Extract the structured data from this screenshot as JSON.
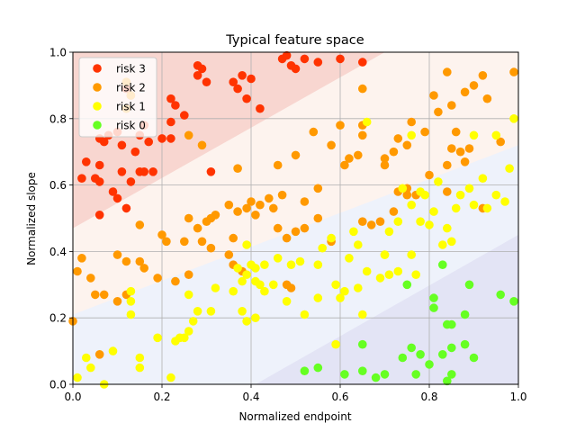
{
  "chart_data": {
    "type": "scatter",
    "title": "Typical feature space",
    "xlabel": "Normalized endpoint",
    "ylabel": "Normalized slope",
    "xlim": [
      0,
      1
    ],
    "ylim": [
      0,
      1
    ],
    "xticks": [
      "0.0",
      "0.2",
      "0.4",
      "0.6",
      "0.8",
      "1.0"
    ],
    "yticks": [
      "0.0",
      "0.2",
      "0.4",
      "0.6",
      "0.8",
      "1.0"
    ],
    "grid": true,
    "legend_position": "top-left",
    "background_regions": [
      {
        "name": "risk 3",
        "color": "#f8d6d0",
        "lower_boundary": [
          [
            0,
            0.47
          ],
          [
            0.7,
            1.0
          ]
        ]
      },
      {
        "name": "risk 2",
        "color": "#fdf3ee",
        "lower_boundary": [
          [
            0,
            0.21
          ],
          [
            1.0,
            0.72
          ]
        ]
      },
      {
        "name": "risk 1",
        "color": "#eef2fb",
        "lower_boundary": [
          [
            0.41,
            0.0
          ],
          [
            1.0,
            0.45
          ]
        ]
      },
      {
        "name": "risk 0",
        "color": "#e3e4f5",
        "lower_boundary": []
      }
    ],
    "series": [
      {
        "name": "risk 3",
        "color": "#ff3300",
        "points": [
          [
            0.28,
            0.96
          ],
          [
            0.29,
            0.95
          ],
          [
            0.3,
            0.91
          ],
          [
            0.28,
            0.93
          ],
          [
            0.36,
            0.91
          ],
          [
            0.37,
            0.89
          ],
          [
            0.38,
            0.93
          ],
          [
            0.39,
            0.86
          ],
          [
            0.4,
            0.92
          ],
          [
            0.42,
            0.83
          ],
          [
            0.47,
            0.98
          ],
          [
            0.48,
            0.99
          ],
          [
            0.49,
            0.96
          ],
          [
            0.5,
            0.95
          ],
          [
            0.52,
            0.98
          ],
          [
            0.55,
            0.97
          ],
          [
            0.6,
            0.98
          ],
          [
            0.65,
            0.97
          ],
          [
            0.12,
            0.89
          ],
          [
            0.13,
            0.87
          ],
          [
            0.16,
            0.78
          ],
          [
            0.17,
            0.73
          ],
          [
            0.2,
            0.74
          ],
          [
            0.22,
            0.79
          ],
          [
            0.22,
            0.86
          ],
          [
            0.23,
            0.84
          ],
          [
            0.25,
            0.81
          ],
          [
            0.22,
            0.74
          ],
          [
            0.06,
            0.74
          ],
          [
            0.07,
            0.73
          ],
          [
            0.08,
            0.75
          ],
          [
            0.1,
            0.76
          ],
          [
            0.11,
            0.72
          ],
          [
            0.14,
            0.7
          ],
          [
            0.15,
            0.64
          ],
          [
            0.16,
            0.64
          ],
          [
            0.18,
            0.64
          ],
          [
            0.13,
            0.61
          ],
          [
            0.11,
            0.64
          ],
          [
            0.03,
            0.67
          ],
          [
            0.06,
            0.66
          ],
          [
            0.02,
            0.62
          ],
          [
            0.05,
            0.62
          ],
          [
            0.06,
            0.61
          ],
          [
            0.09,
            0.58
          ],
          [
            0.1,
            0.56
          ],
          [
            0.06,
            0.51
          ],
          [
            0.12,
            0.53
          ],
          [
            0.31,
            0.64
          ],
          [
            0.15,
            0.75
          ]
        ]
      },
      {
        "name": "risk 2",
        "color": "#ff9900",
        "points": [
          [
            0.12,
            0.91
          ],
          [
            0.13,
            0.87
          ],
          [
            0.12,
            0.83
          ],
          [
            0.26,
            0.75
          ],
          [
            0.29,
            0.72
          ],
          [
            0.37,
            0.65
          ],
          [
            0.46,
            0.66
          ],
          [
            0.5,
            0.69
          ],
          [
            0.54,
            0.76
          ],
          [
            0.58,
            0.72
          ],
          [
            0.6,
            0.78
          ],
          [
            0.61,
            0.66
          ],
          [
            0.62,
            0.68
          ],
          [
            0.64,
            0.69
          ],
          [
            0.65,
            0.78
          ],
          [
            0.65,
            0.89
          ],
          [
            0.65,
            0.75
          ],
          [
            0.7,
            0.68
          ],
          [
            0.7,
            0.66
          ],
          [
            0.72,
            0.7
          ],
          [
            0.73,
            0.74
          ],
          [
            0.75,
            0.72
          ],
          [
            0.76,
            0.79
          ],
          [
            0.79,
            0.76
          ],
          [
            0.81,
            0.87
          ],
          [
            0.82,
            0.82
          ],
          [
            0.84,
            0.94
          ],
          [
            0.85,
            0.84
          ],
          [
            0.86,
            0.76
          ],
          [
            0.87,
            0.7
          ],
          [
            0.88,
            0.88
          ],
          [
            0.89,
            0.71
          ],
          [
            0.9,
            0.9
          ],
          [
            0.92,
            0.93
          ],
          [
            0.93,
            0.86
          ],
          [
            0.96,
            0.73
          ],
          [
            0.99,
            0.94
          ],
          [
            0.88,
            0.67
          ],
          [
            0.85,
            0.71
          ],
          [
            0.8,
            0.63
          ],
          [
            0.84,
            0.58
          ],
          [
            0.55,
            0.59
          ],
          [
            0.52,
            0.55
          ],
          [
            0.47,
            0.57
          ],
          [
            0.44,
            0.56
          ],
          [
            0.45,
            0.53
          ],
          [
            0.42,
            0.54
          ],
          [
            0.41,
            0.51
          ],
          [
            0.39,
            0.53
          ],
          [
            0.4,
            0.55
          ],
          [
            0.37,
            0.52
          ],
          [
            0.35,
            0.54
          ],
          [
            0.32,
            0.51
          ],
          [
            0.3,
            0.49
          ],
          [
            0.31,
            0.5
          ],
          [
            0.26,
            0.5
          ],
          [
            0.28,
            0.47
          ],
          [
            0.29,
            0.43
          ],
          [
            0.31,
            0.41
          ],
          [
            0.35,
            0.39
          ],
          [
            0.36,
            0.36
          ],
          [
            0.38,
            0.34
          ],
          [
            0.36,
            0.44
          ],
          [
            0.5,
            0.46
          ],
          [
            0.52,
            0.47
          ],
          [
            0.55,
            0.5
          ],
          [
            0.58,
            0.43
          ],
          [
            0.46,
            0.47
          ],
          [
            0.48,
            0.44
          ],
          [
            0.65,
            0.49
          ],
          [
            0.67,
            0.48
          ],
          [
            0.69,
            0.49
          ],
          [
            0.72,
            0.52
          ],
          [
            0.75,
            0.57
          ],
          [
            0.73,
            0.58
          ],
          [
            0.75,
            0.59
          ],
          [
            0.77,
            0.57
          ],
          [
            0.2,
            0.45
          ],
          [
            0.21,
            0.43
          ],
          [
            0.25,
            0.43
          ],
          [
            0.15,
            0.48
          ],
          [
            0.02,
            0.38
          ],
          [
            0.01,
            0.34
          ],
          [
            0.04,
            0.32
          ],
          [
            0.05,
            0.27
          ],
          [
            0.07,
            0.27
          ],
          [
            0.1,
            0.39
          ],
          [
            0.1,
            0.25
          ],
          [
            0.12,
            0.27
          ],
          [
            0.19,
            0.32
          ],
          [
            0.23,
            0.31
          ],
          [
            0.26,
            0.33
          ],
          [
            0.15,
            0.37
          ],
          [
            0.16,
            0.35
          ],
          [
            0.12,
            0.37
          ],
          [
            0.0,
            0.19
          ],
          [
            0.06,
            0.09
          ],
          [
            0.48,
            0.3
          ],
          [
            0.49,
            0.29
          ],
          [
            0.92,
            0.53
          ],
          [
            0.84,
            0.66
          ]
        ]
      },
      {
        "name": "risk 1",
        "color": "#ffff00",
        "points": [
          [
            0.78,
            0.49
          ],
          [
            0.8,
            0.48
          ],
          [
            0.76,
            0.54
          ],
          [
            0.78,
            0.58
          ],
          [
            0.79,
            0.57
          ],
          [
            0.82,
            0.61
          ],
          [
            0.86,
            0.53
          ],
          [
            0.87,
            0.57
          ],
          [
            0.89,
            0.59
          ],
          [
            0.9,
            0.54
          ],
          [
            0.92,
            0.62
          ],
          [
            0.93,
            0.53
          ],
          [
            0.95,
            0.57
          ],
          [
            0.97,
            0.55
          ],
          [
            0.98,
            0.65
          ],
          [
            0.99,
            0.8
          ],
          [
            0.95,
            0.75
          ],
          [
            0.9,
            0.75
          ],
          [
            0.83,
            0.42
          ],
          [
            0.85,
            0.43
          ],
          [
            0.84,
            0.47
          ],
          [
            0.81,
            0.52
          ],
          [
            0.73,
            0.49
          ],
          [
            0.71,
            0.46
          ],
          [
            0.63,
            0.46
          ],
          [
            0.64,
            0.42
          ],
          [
            0.62,
            0.38
          ],
          [
            0.58,
            0.44
          ],
          [
            0.56,
            0.41
          ],
          [
            0.55,
            0.36
          ],
          [
            0.51,
            0.37
          ],
          [
            0.49,
            0.36
          ],
          [
            0.46,
            0.38
          ],
          [
            0.45,
            0.3
          ],
          [
            0.48,
            0.25
          ],
          [
            0.52,
            0.21
          ],
          [
            0.55,
            0.26
          ],
          [
            0.59,
            0.3
          ],
          [
            0.61,
            0.28
          ],
          [
            0.6,
            0.26
          ],
          [
            0.64,
            0.29
          ],
          [
            0.66,
            0.34
          ],
          [
            0.69,
            0.32
          ],
          [
            0.71,
            0.33
          ],
          [
            0.73,
            0.34
          ],
          [
            0.7,
            0.39
          ],
          [
            0.77,
            0.33
          ],
          [
            0.76,
            0.39
          ],
          [
            0.4,
            0.36
          ],
          [
            0.41,
            0.35
          ],
          [
            0.41,
            0.31
          ],
          [
            0.42,
            0.3
          ],
          [
            0.43,
            0.28
          ],
          [
            0.39,
            0.33
          ],
          [
            0.38,
            0.31
          ],
          [
            0.37,
            0.35
          ],
          [
            0.39,
            0.42
          ],
          [
            0.43,
            0.36
          ],
          [
            0.41,
            0.2
          ],
          [
            0.39,
            0.19
          ],
          [
            0.38,
            0.22
          ],
          [
            0.36,
            0.28
          ],
          [
            0.32,
            0.29
          ],
          [
            0.31,
            0.22
          ],
          [
            0.26,
            0.27
          ],
          [
            0.24,
            0.14
          ],
          [
            0.25,
            0.14
          ],
          [
            0.23,
            0.13
          ],
          [
            0.26,
            0.16
          ],
          [
            0.27,
            0.19
          ],
          [
            0.28,
            0.22
          ],
          [
            0.19,
            0.14
          ],
          [
            0.15,
            0.05
          ],
          [
            0.15,
            0.08
          ],
          [
            0.13,
            0.21
          ],
          [
            0.13,
            0.25
          ],
          [
            0.13,
            0.28
          ],
          [
            0.09,
            0.1
          ],
          [
            0.07,
            0.0
          ],
          [
            0.03,
            0.08
          ],
          [
            0.04,
            0.05
          ],
          [
            0.01,
            0.02
          ],
          [
            0.22,
            0.02
          ],
          [
            0.59,
            0.12
          ],
          [
            0.65,
            0.21
          ],
          [
            0.7,
            0.39
          ],
          [
            0.74,
            0.59
          ],
          [
            0.76,
            0.75
          ],
          [
            0.66,
            0.79
          ]
        ]
      },
      {
        "name": "risk 0",
        "color": "#66ff22",
        "points": [
          [
            0.52,
            0.04
          ],
          [
            0.55,
            0.05
          ],
          [
            0.61,
            0.03
          ],
          [
            0.65,
            0.04
          ],
          [
            0.65,
            0.12
          ],
          [
            0.68,
            0.02
          ],
          [
            0.7,
            0.03
          ],
          [
            0.74,
            0.08
          ],
          [
            0.76,
            0.11
          ],
          [
            0.77,
            0.03
          ],
          [
            0.75,
            0.3
          ],
          [
            0.78,
            0.09
          ],
          [
            0.8,
            0.06
          ],
          [
            0.81,
            0.26
          ],
          [
            0.81,
            0.23
          ],
          [
            0.83,
            0.36
          ],
          [
            0.83,
            0.09
          ],
          [
            0.84,
            0.18
          ],
          [
            0.85,
            0.18
          ],
          [
            0.85,
            0.11
          ],
          [
            0.85,
            0.03
          ],
          [
            0.84,
            0.01
          ],
          [
            0.88,
            0.21
          ],
          [
            0.88,
            0.12
          ],
          [
            0.89,
            0.3
          ],
          [
            0.9,
            0.08
          ],
          [
            0.96,
            0.27
          ],
          [
            0.99,
            0.25
          ]
        ]
      }
    ]
  }
}
